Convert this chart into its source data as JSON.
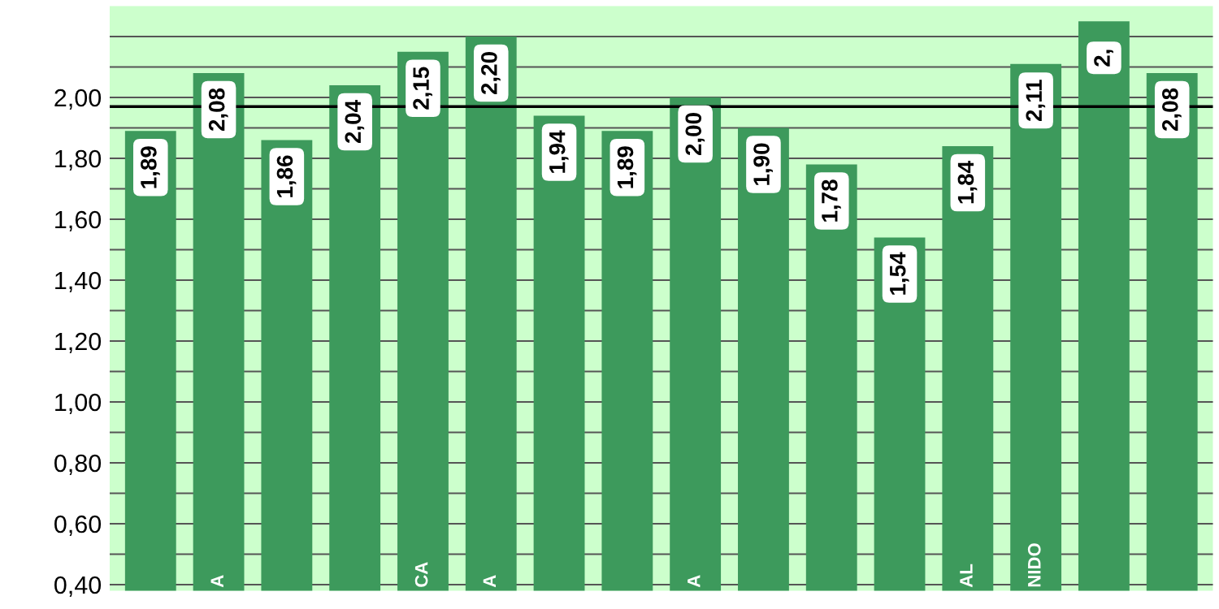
{
  "chart_data": {
    "type": "bar",
    "categories": [
      null,
      "A",
      null,
      null,
      "CA",
      "A",
      null,
      null,
      "A",
      null,
      null,
      null,
      "AL",
      "NIDO",
      null,
      null
    ],
    "values": [
      1.89,
      2.08,
      1.86,
      2.04,
      2.15,
      2.2,
      1.94,
      1.89,
      2.0,
      1.9,
      1.78,
      1.54,
      1.84,
      2.11,
      2.25,
      2.08
    ],
    "value_labels": [
      "1,89",
      "2,08",
      "1,86",
      "2,04",
      "2,15",
      "2,20",
      "1,94",
      "1,89",
      "2,00",
      "1,90",
      "1,78",
      "1,54",
      "1,84",
      "2,11",
      "2,",
      "2,08"
    ],
    "color": "#3d9a5c",
    "ylim": [
      0.38,
      2.3
    ],
    "yticks": [
      {
        "value": 0.4,
        "label": "0,40"
      },
      {
        "value": 0.5,
        "label": null
      },
      {
        "value": 0.6,
        "label": "0,60"
      },
      {
        "value": 0.7,
        "label": null
      },
      {
        "value": 0.8,
        "label": "0,80"
      },
      {
        "value": 0.9,
        "label": null
      },
      {
        "value": 1.0,
        "label": "1,00"
      },
      {
        "value": 1.1,
        "label": null
      },
      {
        "value": 1.2,
        "label": "1,20"
      },
      {
        "value": 1.3,
        "label": null
      },
      {
        "value": 1.4,
        "label": "1,40"
      },
      {
        "value": 1.5,
        "label": null
      },
      {
        "value": 1.6,
        "label": "1,60"
      },
      {
        "value": 1.7,
        "label": null
      },
      {
        "value": 1.8,
        "label": "1,80"
      },
      {
        "value": 1.9,
        "label": null
      },
      {
        "value": 2.0,
        "label": "2,00"
      },
      {
        "value": 2.1,
        "label": null
      },
      {
        "value": 2.2,
        "label": null
      }
    ],
    "ref_lines": [
      {
        "axis": "y",
        "value": 1.97,
        "color": "#000000"
      }
    ],
    "grid": "y"
  }
}
